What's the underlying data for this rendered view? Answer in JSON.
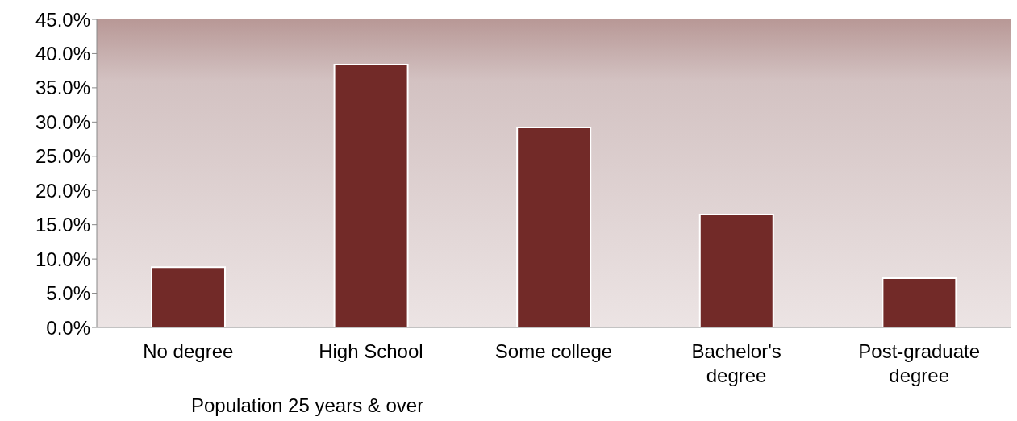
{
  "chart_data": {
    "type": "bar",
    "xlabel": "Population 25 years & over",
    "categories": [
      "No degree",
      "High School",
      "Some college",
      "Bachelor's degree",
      "Post-graduate degree"
    ],
    "values": [
      8.8,
      38.4,
      29.2,
      16.5,
      7.2
    ],
    "color": "#722a28",
    "ylim": [
      0,
      45
    ],
    "yticks": [
      {
        "value": 0,
        "label": "0.0%"
      },
      {
        "value": 5,
        "label": "5.0%"
      },
      {
        "value": 10,
        "label": "10.0%"
      },
      {
        "value": 15,
        "label": "15.0%"
      },
      {
        "value": 20,
        "label": "20.0%"
      },
      {
        "value": 25,
        "label": "25.0%"
      },
      {
        "value": 30,
        "label": "30.0%"
      },
      {
        "value": 35,
        "label": "35.0%"
      },
      {
        "value": 40,
        "label": "40.0%"
      },
      {
        "value": 45,
        "label": "45.0%"
      }
    ]
  }
}
